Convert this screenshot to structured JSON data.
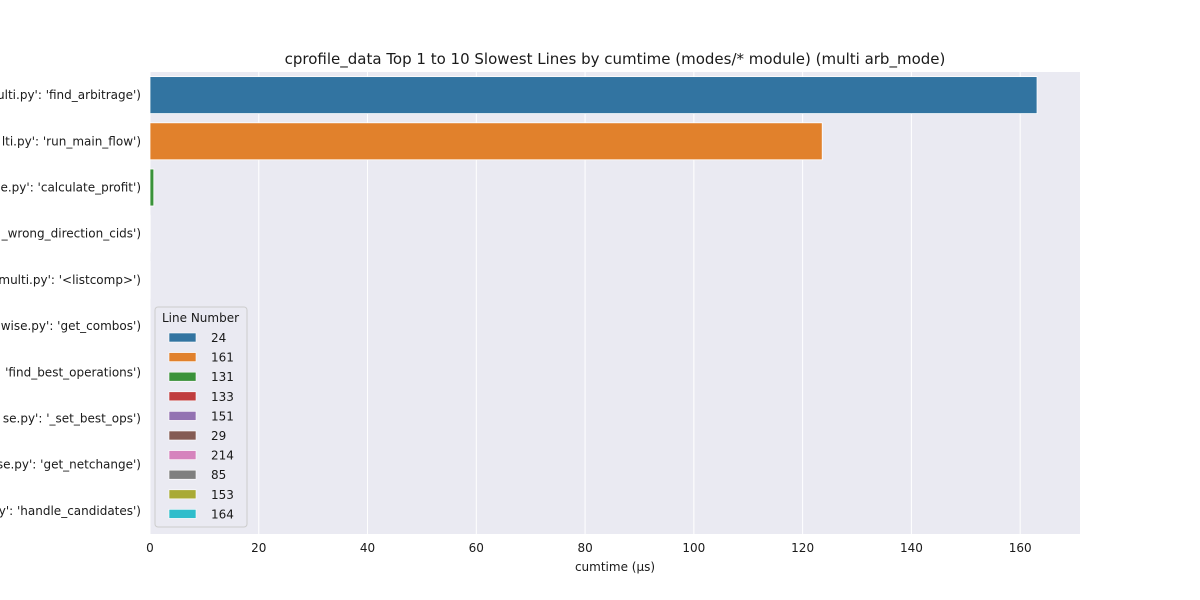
{
  "chart_data": {
    "type": "bar",
    "orientation": "horizontal",
    "title": "cprofile_data Top 1 to 10 Slowest Lines by cumtime (modes/* module) (multi arb_mode)",
    "xlabel": "cumtime (μs)",
    "ylabel": "",
    "xlim": [
      0,
      171
    ],
    "x_ticks": [
      "0",
      "20",
      "40",
      "60",
      "80",
      "100",
      "120",
      "140",
      "160"
    ],
    "grid": true,
    "legend_placement": "lower-left",
    "legend_title": "Line Number",
    "categories": [
      "ulti.py': 'find_arbitrage')",
      "lti.py': 'run_main_flow')",
      "se.py': 'calculate_profit')",
      "_wrong_direction_cids')",
      "_multi.py': '<listcomp>')",
      "wise.py': 'get_combos')",
      "'find_best_operations')",
      "se.py': '_set_best_ops')",
      "se.py': 'get_netchange')",
      "y': 'handle_candidates')"
    ],
    "values": [
      163.1,
      123.6,
      0.7,
      0.05,
      0.04,
      0.03,
      0.03,
      0.02,
      0.02,
      0.01
    ],
    "line_numbers": [
      "24",
      "161",
      "131",
      "133",
      "151",
      "29",
      "214",
      "85",
      "153",
      "164"
    ],
    "colors": [
      "#3274a1",
      "#e1812c",
      "#3a923a",
      "#c03d3e",
      "#9372b2",
      "#845b53",
      "#d684bd",
      "#7f7f7f",
      "#a9aa35",
      "#2ebdcb"
    ],
    "background": "#eaeaf2"
  }
}
